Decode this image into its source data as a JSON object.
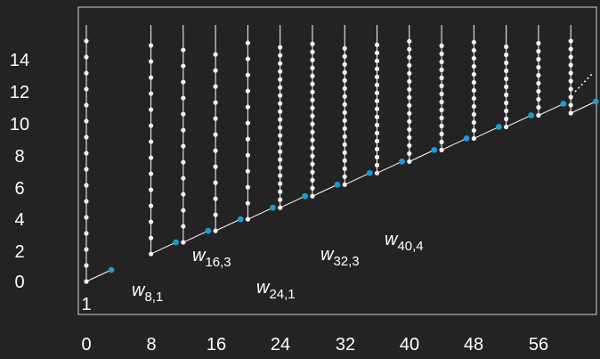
{
  "colors": {
    "background": "#232323",
    "line": "#ffffff",
    "node": "#f2f2f2",
    "accent": "#1b9ad6"
  },
  "x_ticks": [
    "0",
    "8",
    "16",
    "24",
    "32",
    "40",
    "48",
    "56"
  ],
  "y_ticks": [
    "0",
    "2",
    "4",
    "6",
    "8",
    "10",
    "12",
    "14"
  ],
  "corner_label": "1",
  "column_xs": [
    0,
    8,
    12,
    16,
    20,
    24,
    28,
    32,
    36,
    40,
    44,
    48,
    52,
    56,
    60
  ],
  "labels": [
    {
      "name": "w",
      "sub": "8,1"
    },
    {
      "name": "w",
      "sub": "16,3"
    },
    {
      "name": "w",
      "sub": "24,1"
    },
    {
      "name": "w",
      "sub": "32,3"
    },
    {
      "name": "w",
      "sub": "40,4"
    }
  ]
}
